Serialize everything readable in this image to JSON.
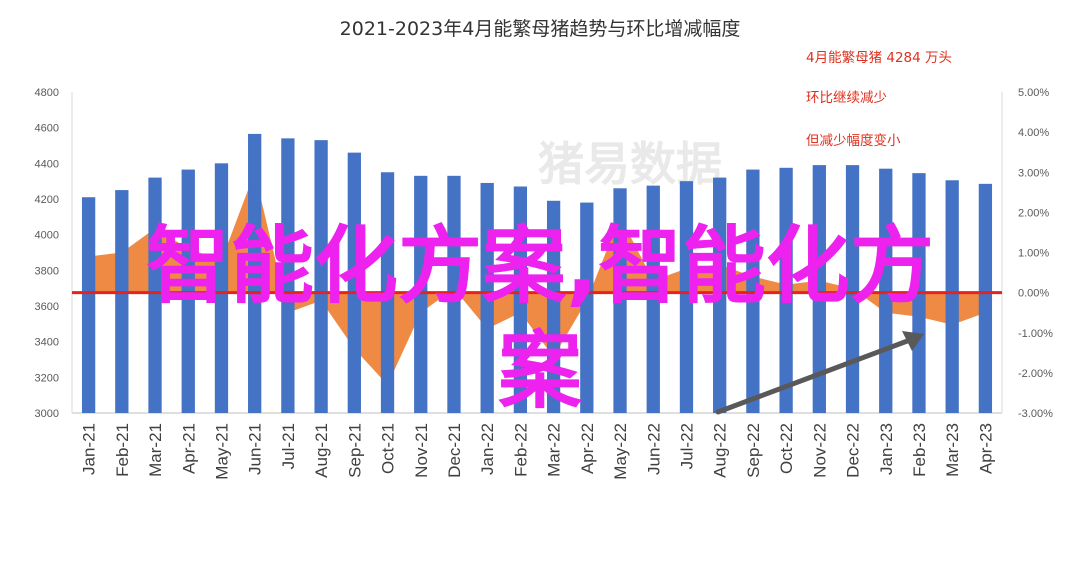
{
  "watermark": "猪易数据",
  "overlay_text": {
    "line1": "智能化方案,智能化方",
    "line2": "案"
  },
  "chart_data": {
    "type": "bar",
    "title": "2021-2023年4月能繁母猪趋势与环比增减幅度",
    "categories": [
      "Jan-21",
      "Feb-21",
      "Mar-21",
      "Apr-21",
      "May-21",
      "Jun-21",
      "Jul-21",
      "Aug-21",
      "Sep-21",
      "Oct-21",
      "Nov-21",
      "Dec-21",
      "Jan-22",
      "Feb-22",
      "Mar-22",
      "Apr-22",
      "May-22",
      "Jun-22",
      "Jul-22",
      "Aug-22",
      "Sep-22",
      "Oct-22",
      "Nov-22",
      "Dec-22",
      "Jan-23",
      "Feb-23",
      "Mar-23",
      "Apr-23"
    ],
    "series": [
      {
        "type": "bar",
        "axis": "left",
        "values": [
          4210,
          4250,
          4320,
          4365,
          4400,
          4565,
          4540,
          4530,
          4460,
          4350,
          4330,
          4330,
          4290,
          4270,
          4190,
          4180,
          4260,
          4275,
          4300,
          4320,
          4365,
          4375,
          4390,
          4390,
          4370,
          4345,
          4305,
          4285
        ]
      },
      {
        "type": "area",
        "axis": "right",
        "values": [
          0.9,
          1.0,
          1.6,
          1.1,
          0.8,
          3.0,
          -0.5,
          -0.2,
          -1.4,
          -2.3,
          -0.5,
          0.1,
          -0.9,
          -0.5,
          -1.6,
          -0.2,
          1.9,
          0.3,
          0.6,
          0.7,
          0.4,
          0.2,
          0.3,
          0.1,
          -0.5,
          -0.6,
          -0.8,
          -0.5
        ]
      }
    ],
    "y_left": {
      "range": [
        3000,
        4800
      ],
      "ticks": [
        "3000",
        "3200",
        "3400",
        "3600",
        "3800",
        "4000",
        "4200",
        "4400",
        "4600",
        "4800"
      ]
    },
    "y_right": {
      "range": [
        -3,
        5
      ],
      "ticks": [
        "-3.00%",
        "-2.00%",
        "-1.00%",
        "0.00%",
        "1.00%",
        "2.00%",
        "3.00%",
        "4.00%",
        "5.00%"
      ]
    },
    "annotations": [
      "4月能繁母猪 4284 万头",
      "环比继续减少",
      "但减少幅度变小"
    ],
    "colors": {
      "bar": "#4472c4",
      "area": "#ed7d31",
      "zero_line": "#e8211e",
      "arrow": "#595959",
      "annotation": "#e0301e"
    },
    "grid": false,
    "legend": "none"
  }
}
